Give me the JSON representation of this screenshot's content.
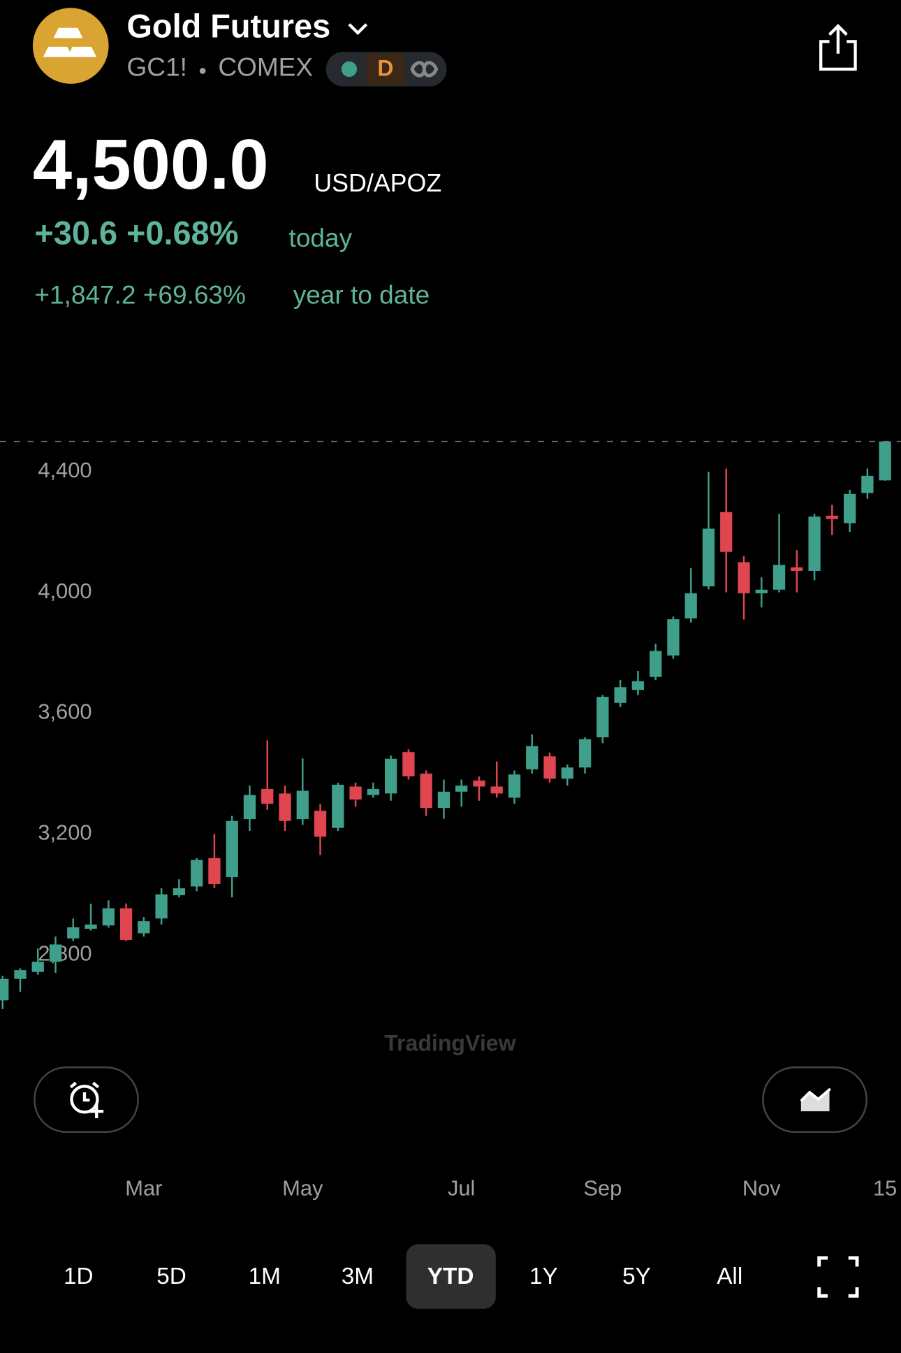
{
  "header": {
    "title": "Gold Futures",
    "symbol": "GC1!",
    "exchange": "COMEX",
    "interval": "D",
    "price": "4,500.0",
    "unit": "USD/APOZ",
    "change_today": "+30.6 +0.68%",
    "today_label": "today",
    "change_ytd": "+1,847.2 +69.63%",
    "ytd_label": "year to date"
  },
  "chart_data": {
    "type": "candlestick",
    "watermark": "TradingView",
    "categories": [
      null,
      null,
      null,
      null,
      null,
      null,
      null,
      null,
      "Mar",
      null,
      null,
      null,
      null,
      null,
      null,
      null,
      null,
      "May",
      null,
      null,
      null,
      null,
      null,
      null,
      null,
      null,
      "Jul",
      null,
      null,
      null,
      null,
      null,
      null,
      null,
      "Sep",
      null,
      null,
      null,
      null,
      null,
      null,
      null,
      null,
      "Nov",
      null,
      null,
      null,
      null,
      null,
      null,
      "15"
    ],
    "open": [
      2649,
      2720,
      2743,
      2777,
      2854,
      2886,
      2897,
      2954,
      2871,
      2920,
      2997,
      3026,
      3120,
      3057,
      3249,
      3349,
      3334,
      3249,
      3277,
      3220,
      3357,
      3329,
      3334,
      3471,
      3400,
      3286,
      3340,
      3377,
      3357,
      3320,
      3414,
      3457,
      3383,
      3420,
      3520,
      3634,
      3677,
      3720,
      3791,
      3914,
      4020,
      4266,
      4100,
      3997,
      4009,
      4083,
      4071,
      4254,
      4229,
      4329,
      4371
    ],
    "high": [
      2730,
      2755,
      2820,
      2860,
      2920,
      2969,
      2980,
      2970,
      2925,
      3020,
      3050,
      3120,
      3200,
      3260,
      3360,
      3510,
      3360,
      3450,
      3300,
      3370,
      3370,
      3370,
      3460,
      3480,
      3410,
      3380,
      3380,
      3390,
      3440,
      3410,
      3530,
      3470,
      3430,
      3520,
      3660,
      3710,
      3740,
      3830,
      3920,
      4080,
      4400,
      4410,
      4120,
      4050,
      4260,
      4140,
      4260,
      4290,
      4340,
      4410,
      4500
    ],
    "low": [
      2620,
      2677,
      2734,
      2740,
      2845,
      2880,
      2890,
      2845,
      2860,
      2900,
      2990,
      3010,
      3020,
      2990,
      3210,
      3280,
      3210,
      3230,
      3130,
      3210,
      3290,
      3320,
      3310,
      3380,
      3260,
      3250,
      3290,
      3310,
      3320,
      3300,
      3400,
      3370,
      3360,
      3400,
      3500,
      3620,
      3660,
      3710,
      3780,
      3900,
      4010,
      4000,
      3910,
      3950,
      4000,
      4000,
      4040,
      4190,
      4200,
      4310,
      4370
    ],
    "close": [
      2720,
      2749,
      2777,
      2834,
      2891,
      2900,
      2954,
      2849,
      2911,
      3000,
      3020,
      3114,
      3034,
      3243,
      3329,
      3300,
      3243,
      3343,
      3191,
      3363,
      3314,
      3349,
      3449,
      3391,
      3286,
      3340,
      3360,
      3357,
      3334,
      3397,
      3491,
      3383,
      3420,
      3514,
      3654,
      3686,
      3706,
      3806,
      3911,
      3997,
      4211,
      4134,
      3997,
      4009,
      4091,
      4071,
      4251,
      4243,
      4326,
      4386,
      4500
    ],
    "up_color": "#3f9f8a",
    "down_color": "#e0464f",
    "ylim": [
      2590,
      4590
    ],
    "yticks": [
      {
        "value": 2800,
        "label": "2,800"
      },
      {
        "value": 3200,
        "label": "3,200"
      },
      {
        "value": 3600,
        "label": "3,600"
      },
      {
        "value": 4000,
        "label": "4,000"
      },
      {
        "value": 4400,
        "label": "4,400"
      }
    ],
    "last_price_line": true
  },
  "range_buttons": [
    "1D",
    "5D",
    "1M",
    "3M",
    "YTD",
    "1Y",
    "5Y",
    "All"
  ]
}
